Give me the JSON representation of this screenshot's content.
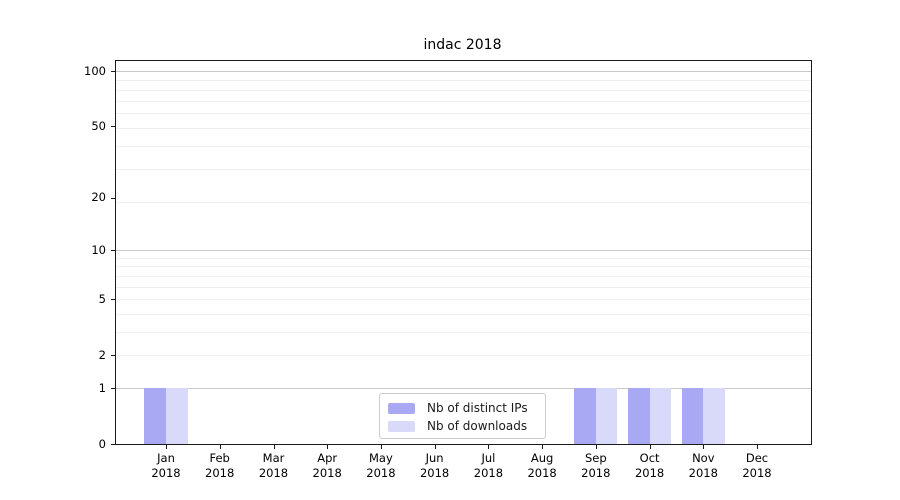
{
  "title": "indac 2018",
  "chart_data": {
    "type": "bar",
    "title": "indac 2018",
    "categories": [
      {
        "m": "Jan",
        "y": "2018"
      },
      {
        "m": "Feb",
        "y": "2018"
      },
      {
        "m": "Mar",
        "y": "2018"
      },
      {
        "m": "Apr",
        "y": "2018"
      },
      {
        "m": "May",
        "y": "2018"
      },
      {
        "m": "Jun",
        "y": "2018"
      },
      {
        "m": "Jul",
        "y": "2018"
      },
      {
        "m": "Aug",
        "y": "2018"
      },
      {
        "m": "Sep",
        "y": "2018"
      },
      {
        "m": "Oct",
        "y": "2018"
      },
      {
        "m": "Nov",
        "y": "2018"
      },
      {
        "m": "Dec",
        "y": "2018"
      }
    ],
    "series": [
      {
        "name": "Nb of distinct IPs",
        "color": "#a8a8f3",
        "values": [
          1,
          0,
          0,
          0,
          0,
          0,
          0,
          0,
          1,
          1,
          1,
          0
        ]
      },
      {
        "name": "Nb of downloads",
        "color": "#d9d9f9",
        "values": [
          1,
          0,
          0,
          0,
          0,
          0,
          0,
          0,
          1,
          1,
          1,
          0
        ]
      }
    ],
    "y_axis": {
      "scale": "log1p",
      "ticks": [
        0,
        1,
        2,
        5,
        10,
        20,
        50,
        100
      ],
      "ylim": [
        0,
        113.3
      ],
      "grid_major": [
        1,
        10,
        100
      ],
      "grid_minor": [
        2,
        3,
        4,
        5,
        6,
        7,
        8,
        9,
        19,
        29,
        39,
        49,
        59,
        69,
        79,
        89
      ]
    },
    "x_axis": {
      "label_line2_all": "2018"
    },
    "legend": {
      "position": "lower center"
    },
    "colors": {
      "grid_minor": "#efefef",
      "grid_major": "#c8c8c8",
      "spine": "#1a1a1a",
      "background": "#ffffff"
    }
  }
}
